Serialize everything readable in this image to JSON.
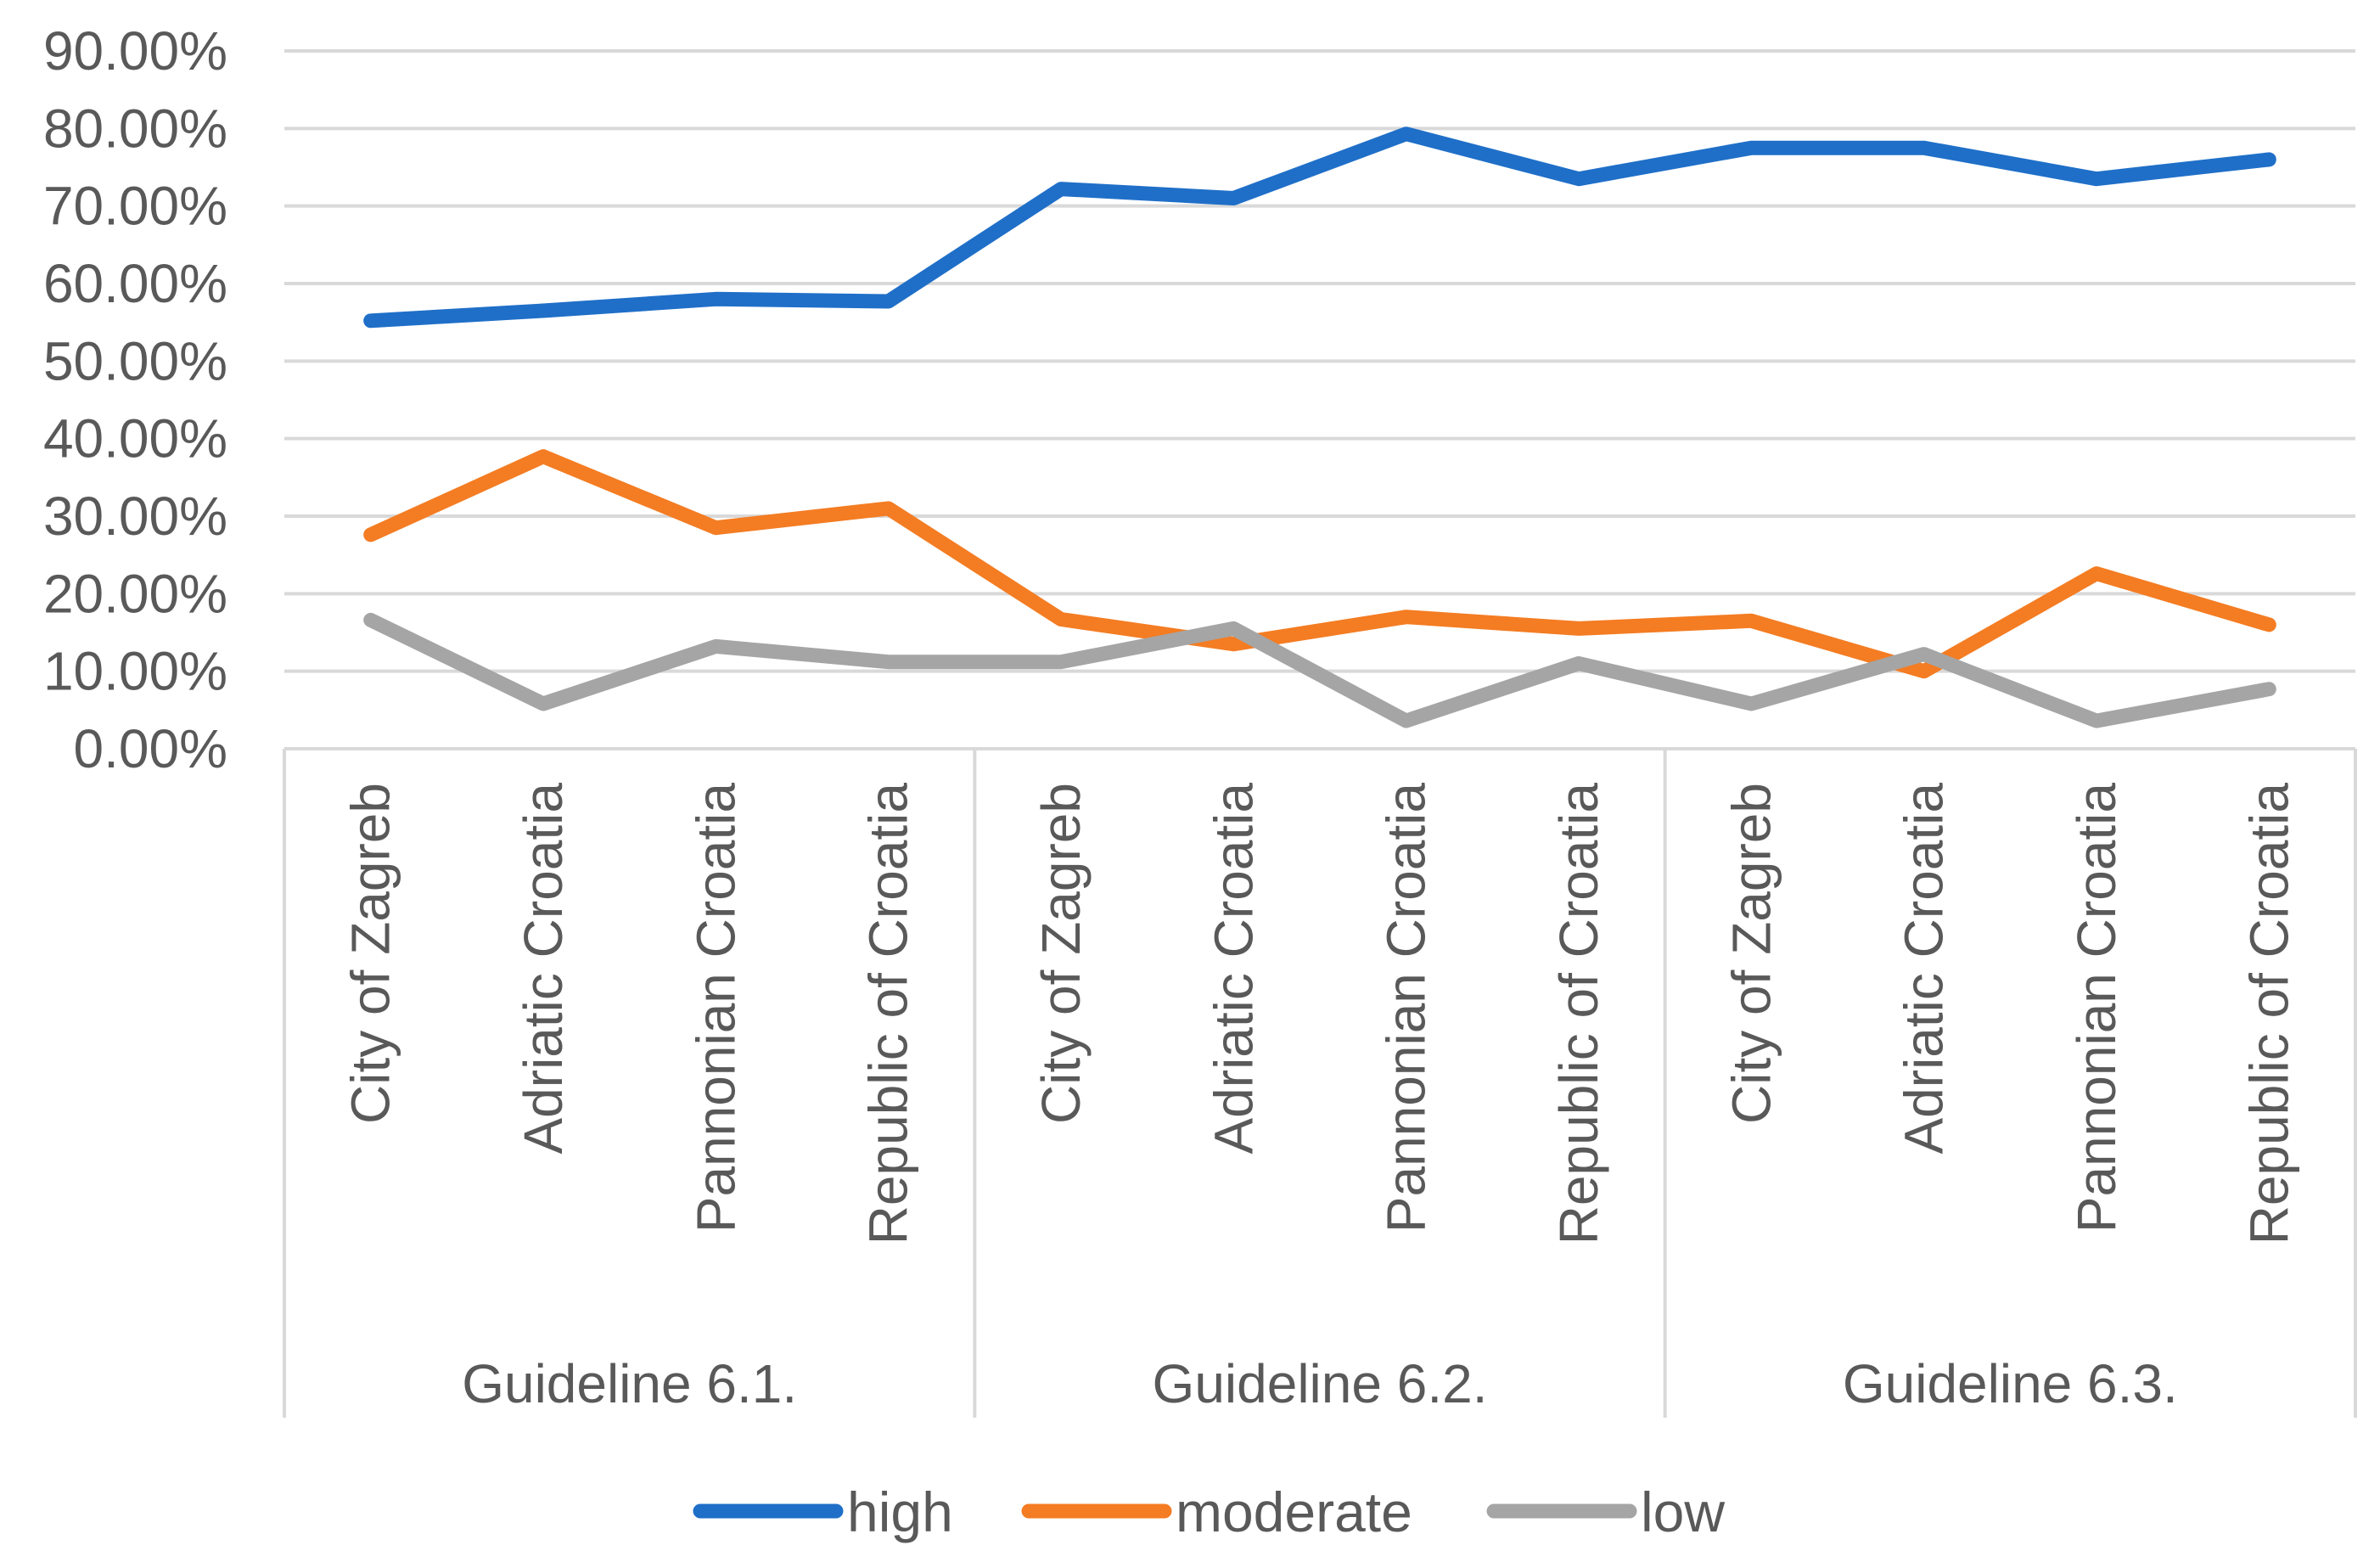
{
  "chart_data": {
    "type": "line",
    "title": "",
    "xlabel": "",
    "ylabel": "",
    "ylim": [
      0,
      90
    ],
    "y_ticks": [
      "0.00%",
      "10.00%",
      "20.00%",
      "30.00%",
      "40.00%",
      "50.00%",
      "60.00%",
      "70.00%",
      "80.00%",
      "90.00%"
    ],
    "groups": [
      {
        "label": "Guideline 6.1.",
        "categories": [
          "City of Zagreb",
          "Adriatic Croatia",
          "Pannonian Croatia",
          "Republic of Croatia"
        ]
      },
      {
        "label": "Guideline 6.2.",
        "categories": [
          "City of Zagreb",
          "Adriatic Croatia",
          "Pannonian Croatia",
          "Republic of Croatia"
        ]
      },
      {
        "label": "Guideline 6.3.",
        "categories": [
          "City of Zagreb",
          "Adriatic Croatia",
          "Pannonian Croatia",
          "Republic of Croatia"
        ]
      }
    ],
    "series": [
      {
        "name": "high",
        "color": "#1F6FC8",
        "values": [
          55.2,
          56.5,
          58.0,
          57.7,
          72.2,
          71.0,
          79.3,
          73.5,
          77.5,
          77.5,
          73.5,
          76.0
        ]
      },
      {
        "name": "moderate",
        "color": "#F47C22",
        "values": [
          27.6,
          37.7,
          28.5,
          31.0,
          16.7,
          13.5,
          17.0,
          15.5,
          16.5,
          10.0,
          22.6,
          16.0
        ]
      },
      {
        "name": "low",
        "color": "#A5A5A5",
        "values": [
          16.6,
          5.8,
          13.2,
          11.2,
          11.2,
          15.5,
          3.6,
          11.0,
          5.8,
          12.2,
          3.6,
          7.7
        ]
      }
    ],
    "grid": true,
    "legend": "bottom"
  }
}
